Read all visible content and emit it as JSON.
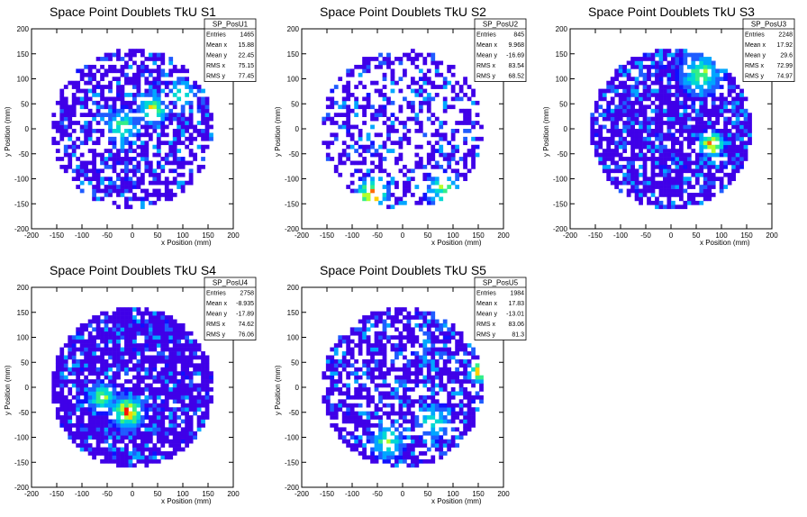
{
  "chart_data": [
    {
      "type": "heatmap",
      "title": "Space Point Doublets TkU S1",
      "xlabel": "x Position (mm)",
      "ylabel": "y Position (mm)",
      "xlim": [
        -200,
        200
      ],
      "ylim": [
        -200,
        200
      ],
      "xticks": [
        "-200",
        "-150",
        "-100",
        "-50",
        "0",
        "50",
        "100",
        "150",
        "200"
      ],
      "yticks": [
        "-200",
        "-150",
        "-100",
        "-50",
        "0",
        "50",
        "100",
        "150",
        "200"
      ],
      "stats": {
        "name": "SP_PosU1",
        "rows": [
          {
            "label": "Entries",
            "value": "1465"
          },
          {
            "label": "Mean x",
            "value": "15.88"
          },
          {
            "label": "Mean y",
            "value": "22.45"
          },
          {
            "label": "RMS x",
            "value": "75.15"
          },
          {
            "label": "RMS y",
            "value": "77.45"
          }
        ]
      },
      "pattern": {
        "fill": 0.62,
        "seed": 11,
        "hot": [
          [
            -20,
            5,
            0.55,
            40
          ],
          [
            40,
            40,
            0.7,
            35
          ],
          [
            100,
            70,
            0.6,
            30
          ]
        ]
      }
    },
    {
      "type": "heatmap",
      "title": "Space Point Doublets TkU S2",
      "xlabel": "x Position (mm)",
      "ylabel": "y Position (mm)",
      "xlim": [
        -200,
        200
      ],
      "ylim": [
        -200,
        200
      ],
      "xticks": [
        "-200",
        "-150",
        "-100",
        "-50",
        "0",
        "50",
        "100",
        "150",
        "200"
      ],
      "yticks": [
        "-200",
        "-150",
        "-100",
        "-50",
        "0",
        "50",
        "100",
        "150",
        "200"
      ],
      "stats": {
        "name": "SP_PosU2",
        "rows": [
          {
            "label": "Entries",
            "value": "845"
          },
          {
            "label": "Mean x",
            "value": "9.968"
          },
          {
            "label": "Mean y",
            "value": "-16.69"
          },
          {
            "label": "RMS x",
            "value": "83.54"
          },
          {
            "label": "RMS y",
            "value": "68.52"
          }
        ]
      },
      "pattern": {
        "fill": 0.42,
        "seed": 23,
        "hot": [
          [
            -60,
            -130,
            0.9,
            40
          ],
          [
            80,
            -120,
            0.6,
            40
          ]
        ]
      }
    },
    {
      "type": "heatmap",
      "title": "Space Point Doublets TkU S3",
      "xlabel": "x Position (mm)",
      "ylabel": "y Position (mm)",
      "xlim": [
        -200,
        200
      ],
      "ylim": [
        -200,
        200
      ],
      "xticks": [
        "-200",
        "-150",
        "-100",
        "-50",
        "0",
        "50",
        "100",
        "150",
        "200"
      ],
      "yticks": [
        "-200",
        "-150",
        "-100",
        "-50",
        "0",
        "50",
        "100",
        "150",
        "200"
      ],
      "stats": {
        "name": "SP_PosU3",
        "rows": [
          {
            "label": "Entries",
            "value": "2248"
          },
          {
            "label": "Mean x",
            "value": "17.92"
          },
          {
            "label": "Mean y",
            "value": "29.6"
          },
          {
            "label": "RMS x",
            "value": "72.99"
          },
          {
            "label": "RMS y",
            "value": "74.97"
          }
        ]
      },
      "pattern": {
        "fill": 0.78,
        "seed": 37,
        "hot": [
          [
            80,
            -30,
            1.0,
            30
          ],
          [
            60,
            110,
            0.6,
            50
          ]
        ]
      }
    },
    {
      "type": "heatmap",
      "title": "Space Point Doublets TkU S4",
      "xlabel": "x Position (mm)",
      "ylabel": "y Position (mm)",
      "xlim": [
        -200,
        200
      ],
      "ylim": [
        -200,
        200
      ],
      "xticks": [
        "-200",
        "-150",
        "-100",
        "-50",
        "0",
        "50",
        "100",
        "150",
        "200"
      ],
      "yticks": [
        "-200",
        "-150",
        "-100",
        "-50",
        "0",
        "50",
        "100",
        "150",
        "200"
      ],
      "stats": {
        "name": "SP_PosU4",
        "rows": [
          {
            "label": "Entries",
            "value": "2758"
          },
          {
            "label": "Mean x",
            "value": "-8.935"
          },
          {
            "label": "Mean y",
            "value": "-17.89"
          },
          {
            "label": "RMS x",
            "value": "74.62"
          },
          {
            "label": "RMS y",
            "value": "76.06"
          }
        ]
      },
      "pattern": {
        "fill": 0.85,
        "seed": 53,
        "hot": [
          [
            -10,
            -50,
            0.9,
            40
          ],
          [
            -60,
            -20,
            0.6,
            35
          ]
        ]
      }
    },
    {
      "type": "heatmap",
      "title": "Space Point Doublets TkU S5",
      "xlabel": "x Position (mm)",
      "ylabel": "y Position (mm)",
      "xlim": [
        -200,
        200
      ],
      "ylim": [
        -200,
        200
      ],
      "xticks": [
        "-200",
        "-150",
        "-100",
        "-50",
        "0",
        "50",
        "100",
        "150",
        "200"
      ],
      "yticks": [
        "-200",
        "-150",
        "-100",
        "-50",
        "0",
        "50",
        "100",
        "150",
        "200"
      ],
      "stats": {
        "name": "SP_PosU5",
        "rows": [
          {
            "label": "Entries",
            "value": "1984"
          },
          {
            "label": "Mean x",
            "value": "17.83"
          },
          {
            "label": "Mean y",
            "value": "-13.01"
          },
          {
            "label": "RMS x",
            "value": "83.06"
          },
          {
            "label": "RMS y",
            "value": "81.3"
          }
        ]
      },
      "pattern": {
        "fill": 0.66,
        "seed": 71,
        "hot": [
          [
            150,
            30,
            1.0,
            25
          ],
          [
            -30,
            -110,
            0.6,
            40
          ],
          [
            60,
            -70,
            0.5,
            40
          ]
        ]
      }
    }
  ]
}
